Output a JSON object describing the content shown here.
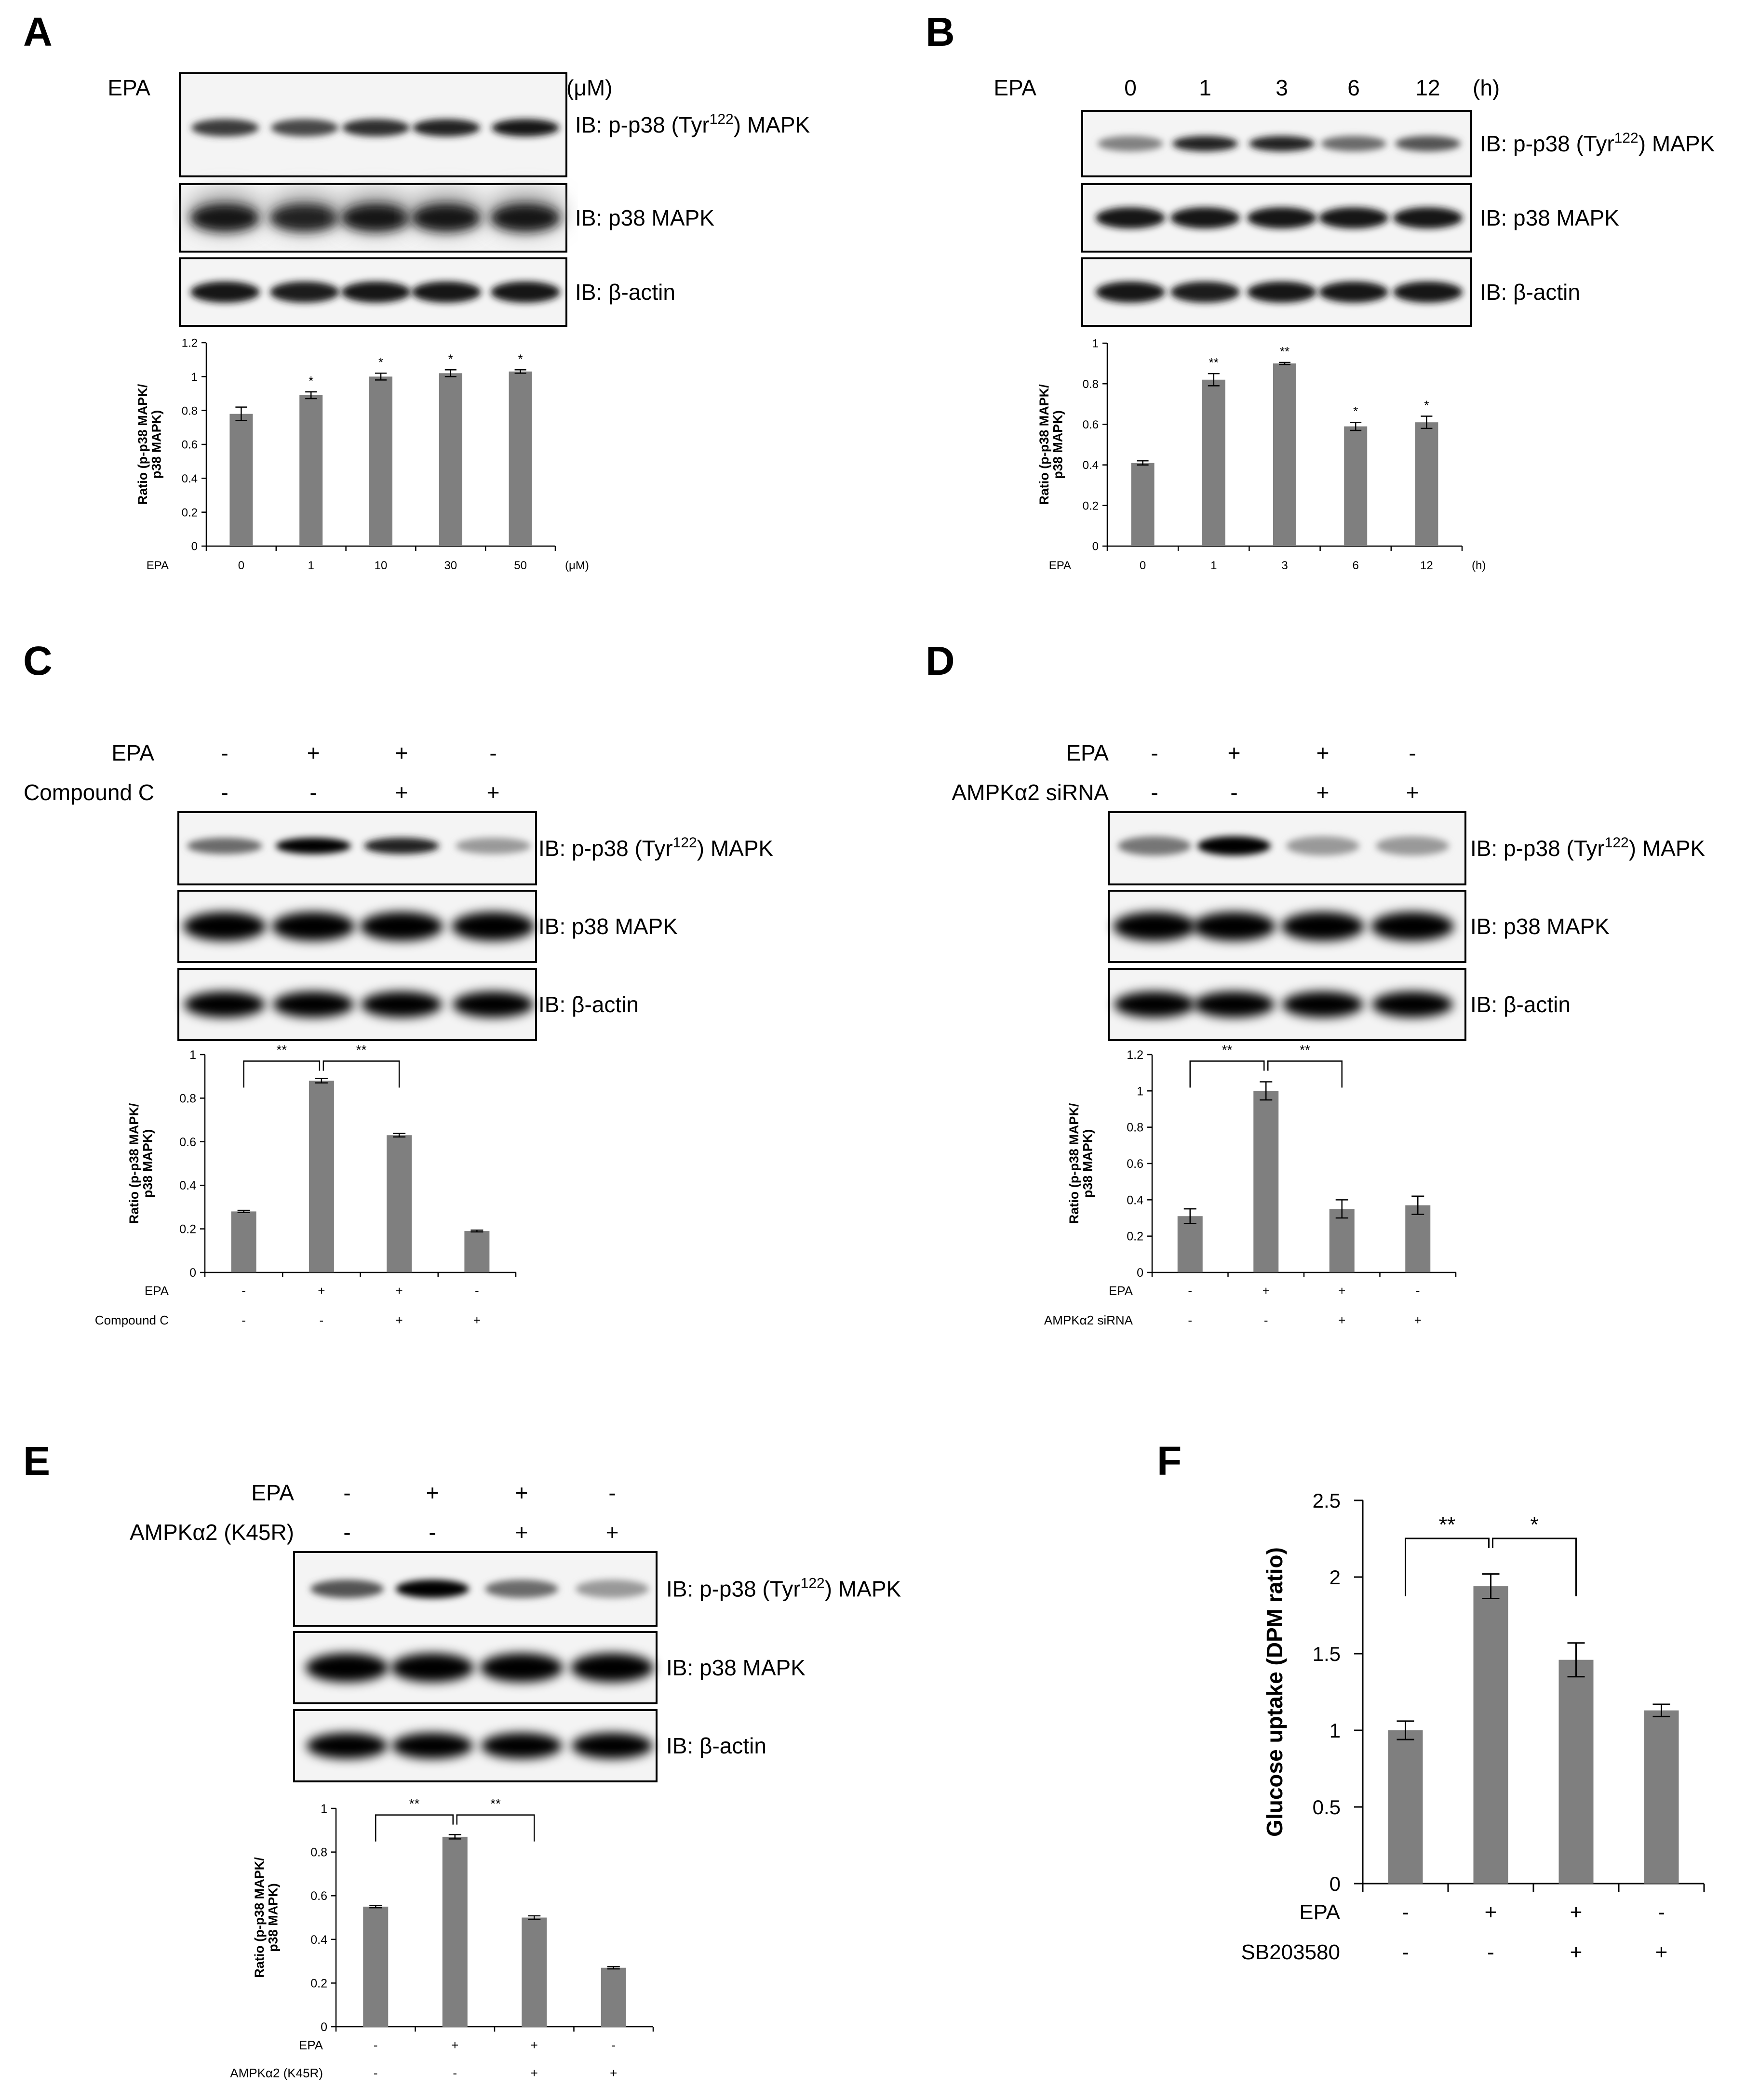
{
  "panels": [
    {
      "letter": "A",
      "header": {
        "rows": [
          {
            "name": "EPA",
            "values": [
              "0",
              "1",
              "10",
              "30",
              "50"
            ],
            "unit": "(μM)"
          }
        ]
      },
      "blots": [
        {
          "label_pre": "IB: p-p38 (Tyr",
          "label_sup": "122",
          "label_post": ") MAPK",
          "style": "phospho-dose"
        },
        {
          "label_pre": "IB: p38 MAPK",
          "label_sup": "",
          "label_post": "",
          "style": "total-smear"
        },
        {
          "label_pre": "IB: β-actin",
          "label_sup": "",
          "label_post": "",
          "style": "actin"
        }
      ]
    },
    {
      "letter": "B",
      "header": {
        "rows": [
          {
            "name": "EPA",
            "values": [
              "0",
              "1",
              "3",
              "6",
              "12"
            ],
            "unit": "(h)"
          }
        ]
      },
      "blots": [
        {
          "label_pre": "IB: p-p38 (Tyr",
          "label_sup": "122",
          "label_post": ") MAPK",
          "style": "phospho-time"
        },
        {
          "label_pre": "IB: p38 MAPK",
          "label_sup": "",
          "label_post": "",
          "style": "total"
        },
        {
          "label_pre": "IB: β-actin",
          "label_sup": "",
          "label_post": "",
          "style": "actin"
        }
      ]
    },
    {
      "letter": "C",
      "header": {
        "rows": [
          {
            "name": "EPA",
            "values": [
              "-",
              "+",
              "+",
              "-"
            ]
          },
          {
            "name": "Compound C",
            "values": [
              "-",
              "-",
              "+",
              "+"
            ]
          }
        ]
      },
      "blots": [
        {
          "label_pre": "IB: p-p38 (Tyr",
          "label_sup": "122",
          "label_post": ") MAPK",
          "style": "phospho-C"
        },
        {
          "label_pre": "IB: p38 MAPK",
          "label_sup": "",
          "label_post": "",
          "style": "total-thick"
        },
        {
          "label_pre": "IB: β-actin",
          "label_sup": "",
          "label_post": "",
          "style": "actin-thick"
        }
      ]
    },
    {
      "letter": "D",
      "header": {
        "rows": [
          {
            "name": "EPA",
            "values": [
              "-",
              "+",
              "+",
              "-"
            ]
          },
          {
            "name": "AMPKα2 siRNA",
            "values": [
              "-",
              "-",
              "+",
              "+"
            ]
          }
        ]
      },
      "blots": [
        {
          "label_pre": "IB: p-p38 (Tyr",
          "label_sup": "122",
          "label_post": ") MAPK",
          "style": "phospho-D"
        },
        {
          "label_pre": "IB: p38 MAPK",
          "label_sup": "",
          "label_post": "",
          "style": "total-thick"
        },
        {
          "label_pre": "IB: β-actin",
          "label_sup": "",
          "label_post": "",
          "style": "actin-thick"
        }
      ]
    },
    {
      "letter": "E",
      "header": {
        "rows": [
          {
            "name": "EPA",
            "values": [
              "-",
              "+",
              "+",
              "-"
            ]
          },
          {
            "name": "AMPKα2 (K45R)",
            "values": [
              "-",
              "-",
              "+",
              "+"
            ]
          }
        ]
      },
      "blots": [
        {
          "label_pre": "IB: p-p38 (Tyr",
          "label_sup": "122",
          "label_post": ") MAPK",
          "style": "phospho-E"
        },
        {
          "label_pre": "IB: p38 MAPK",
          "label_sup": "",
          "label_post": "",
          "style": "total-thick"
        },
        {
          "label_pre": "IB: β-actin",
          "label_sup": "",
          "label_post": "",
          "style": "actin-thick"
        }
      ]
    },
    {
      "letter": "F"
    }
  ],
  "chart_data": [
    {
      "panel": "A",
      "type": "bar",
      "ylabel_lines": [
        "Ratio (p-p38 MAPK/",
        "p38 MAPK)"
      ],
      "ylim": [
        0,
        1.2
      ],
      "yticks": [
        0,
        0.2,
        0.4,
        0.6,
        0.8,
        1,
        1.2
      ],
      "ytick_labels": [
        "0",
        "0.2",
        "0.4",
        "0.6",
        "0.8",
        "1",
        "1.2"
      ],
      "values": [
        0.78,
        0.89,
        1.0,
        1.02,
        1.03
      ],
      "errors": [
        0.04,
        0.02,
        0.02,
        0.02,
        0.01
      ],
      "significance": [
        "",
        "*",
        "*",
        "*",
        "*"
      ],
      "brackets": [],
      "condition_rows": [
        {
          "name": "EPA",
          "values": [
            "0",
            "1",
            "10",
            "30",
            "50"
          ],
          "unit": "(μM)"
        }
      ],
      "color": "#7f7f7f"
    },
    {
      "panel": "B",
      "type": "bar",
      "ylabel_lines": [
        "Ratio (p-p38 MAPK/",
        "p38 MAPK)"
      ],
      "ylim": [
        0,
        1
      ],
      "yticks": [
        0,
        0.2,
        0.4,
        0.6,
        0.8,
        1
      ],
      "ytick_labels": [
        "0",
        "0.2",
        "0.4",
        "0.6",
        "0.8",
        "1"
      ],
      "values": [
        0.41,
        0.82,
        0.9,
        0.59,
        0.61
      ],
      "errors": [
        0.01,
        0.03,
        0.005,
        0.02,
        0.03
      ],
      "significance": [
        "",
        "**",
        "**",
        "*",
        "*"
      ],
      "brackets": [],
      "condition_rows": [
        {
          "name": "EPA",
          "values": [
            "0",
            "1",
            "3",
            "6",
            "12"
          ],
          "unit": "(h)"
        }
      ],
      "color": "#7f7f7f"
    },
    {
      "panel": "C",
      "type": "bar",
      "ylabel_lines": [
        "Ratio (p-p38 MAPK/",
        "p38 MAPK)"
      ],
      "ylim": [
        0,
        1
      ],
      "yticks": [
        0,
        0.2,
        0.4,
        0.6,
        0.8,
        1
      ],
      "ytick_labels": [
        "0",
        "0.2",
        "0.4",
        "0.6",
        "0.8",
        "1"
      ],
      "values": [
        0.28,
        0.88,
        0.63,
        0.19
      ],
      "errors": [
        0.005,
        0.01,
        0.008,
        0.004
      ],
      "significance": [
        "",
        "",
        "",
        ""
      ],
      "brackets": [
        {
          "from": 0,
          "to": 1,
          "label": "**"
        },
        {
          "from": 1,
          "to": 2,
          "label": "**"
        }
      ],
      "condition_rows": [
        {
          "name": "EPA",
          "values": [
            "-",
            "+",
            "+",
            "-"
          ]
        },
        {
          "name": "Compound C",
          "values": [
            "-",
            "-",
            "+",
            "+"
          ]
        }
      ],
      "color": "#7f7f7f"
    },
    {
      "panel": "D",
      "type": "bar",
      "ylabel_lines": [
        "Ratio (p-p38 MAPK/",
        "p38 MAPK)"
      ],
      "ylim": [
        0,
        1.2
      ],
      "yticks": [
        0,
        0.2,
        0.4,
        0.6,
        0.8,
        1,
        1.2
      ],
      "ytick_labels": [
        "0",
        "0.2",
        "0.4",
        "0.6",
        "0.8",
        "1",
        "1.2"
      ],
      "values": [
        0.31,
        1.0,
        0.35,
        0.37
      ],
      "errors": [
        0.04,
        0.05,
        0.05,
        0.05
      ],
      "significance": [
        "",
        "",
        "",
        ""
      ],
      "brackets": [
        {
          "from": 0,
          "to": 1,
          "label": "**"
        },
        {
          "from": 1,
          "to": 2,
          "label": "**"
        }
      ],
      "condition_rows": [
        {
          "name": "EPA",
          "values": [
            "-",
            "+",
            "+",
            "-"
          ]
        },
        {
          "name": "AMPKα2 siRNA",
          "values": [
            "-",
            "-",
            "+",
            "+"
          ]
        }
      ],
      "color": "#7f7f7f"
    },
    {
      "panel": "E",
      "type": "bar",
      "ylabel_lines": [
        "Ratio (p-p38 MAPK/",
        "p38 MAPK)"
      ],
      "ylim": [
        0,
        1
      ],
      "yticks": [
        0,
        0.2,
        0.4,
        0.6,
        0.8,
        1
      ],
      "ytick_labels": [
        "0",
        "0.2",
        "0.4",
        "0.6",
        "0.8",
        "1"
      ],
      "values": [
        0.55,
        0.87,
        0.5,
        0.27
      ],
      "errors": [
        0.005,
        0.01,
        0.008,
        0.005
      ],
      "significance": [
        "",
        "",
        "",
        ""
      ],
      "brackets": [
        {
          "from": 0,
          "to": 1,
          "label": "**"
        },
        {
          "from": 1,
          "to": 2,
          "label": "**"
        }
      ],
      "condition_rows": [
        {
          "name": "EPA",
          "values": [
            "-",
            "+",
            "+",
            "-"
          ]
        },
        {
          "name": "AMPKα2 (K45R)",
          "values": [
            "-",
            "-",
            "+",
            "+"
          ]
        }
      ],
      "color": "#7f7f7f"
    },
    {
      "panel": "F",
      "type": "bar",
      "ylabel_lines": [
        "Glucose uptake (DPM ratio)"
      ],
      "ylim": [
        0,
        2.5
      ],
      "yticks": [
        0,
        0.5,
        1,
        1.5,
        2,
        2.5
      ],
      "ytick_labels": [
        "0",
        "0.5",
        "1",
        "1.5",
        "2",
        "2.5"
      ],
      "values": [
        1.0,
        1.94,
        1.46,
        1.13
      ],
      "errors": [
        0.06,
        0.08,
        0.11,
        0.04
      ],
      "significance": [
        "",
        "",
        "",
        ""
      ],
      "brackets": [
        {
          "from": 0,
          "to": 1,
          "label": "**"
        },
        {
          "from": 1,
          "to": 2,
          "label": "*"
        }
      ],
      "condition_rows": [
        {
          "name": "EPA",
          "values": [
            "-",
            "+",
            "+",
            "-"
          ]
        },
        {
          "name": "SB203580",
          "values": [
            "-",
            "-",
            "+",
            "+"
          ]
        }
      ],
      "color": "#7f7f7f"
    }
  ]
}
